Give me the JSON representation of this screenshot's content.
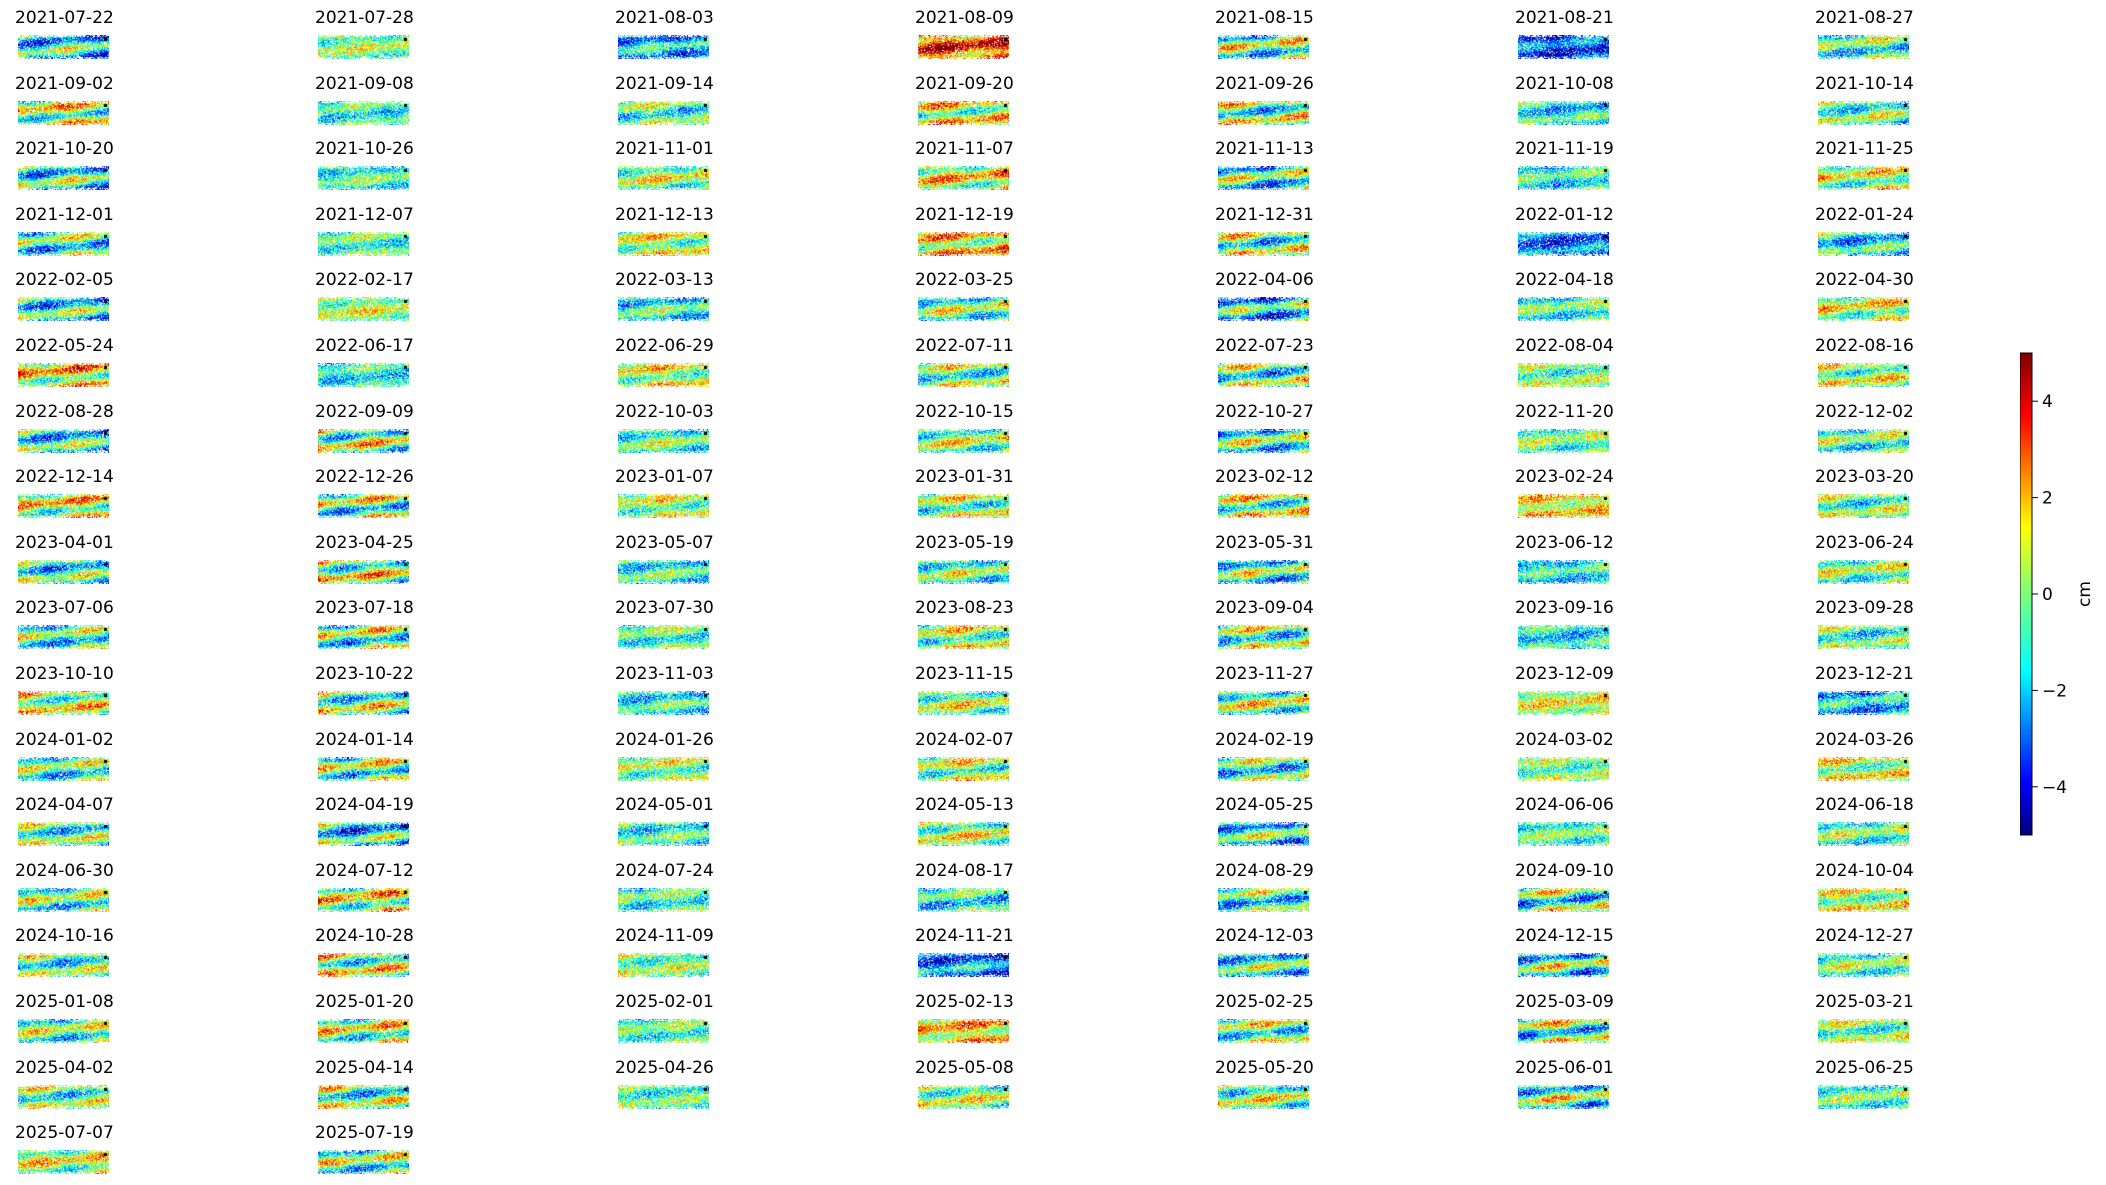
{
  "chart_data": {
    "type": "heatmap",
    "title": "",
    "panel_titles": [
      "2021-07-22",
      "2021-07-28",
      "2021-08-03",
      "2021-08-09",
      "2021-08-15",
      "2021-08-21",
      "2021-08-27",
      "2021-09-02",
      "2021-09-08",
      "2021-09-14",
      "2021-09-20",
      "2021-09-26",
      "2021-10-08",
      "2021-10-14",
      "2021-10-20",
      "2021-10-26",
      "2021-11-01",
      "2021-11-07",
      "2021-11-13",
      "2021-11-19",
      "2021-11-25",
      "2021-12-01",
      "2021-12-07",
      "2021-12-13",
      "2021-12-19",
      "2021-12-31",
      "2022-01-12",
      "2022-01-24",
      "2022-02-05",
      "2022-02-17",
      "2022-03-13",
      "2022-03-25",
      "2022-04-06",
      "2022-04-18",
      "2022-04-30",
      "2022-05-24",
      "2022-06-17",
      "2022-06-29",
      "2022-07-11",
      "2022-07-23",
      "2022-08-04",
      "2022-08-16",
      "2022-08-28",
      "2022-09-09",
      "2022-10-03",
      "2022-10-15",
      "2022-10-27",
      "2022-11-20",
      "2022-12-02",
      "2022-12-14",
      "2022-12-26",
      "2023-01-07",
      "2023-01-31",
      "2023-02-12",
      "2023-02-24",
      "2023-03-20",
      "2023-04-01",
      "2023-04-25",
      "2023-05-07",
      "2023-05-19",
      "2023-05-31",
      "2023-06-12",
      "2023-06-24",
      "2023-07-06",
      "2023-07-18",
      "2023-07-30",
      "2023-08-23",
      "2023-09-04",
      "2023-09-16",
      "2023-09-28",
      "2023-10-10",
      "2023-10-22",
      "2023-11-03",
      "2023-11-15",
      "2023-11-27",
      "2023-12-09",
      "2023-12-21",
      "2024-01-02",
      "2024-01-14",
      "2024-01-26",
      "2024-02-07",
      "2024-02-19",
      "2024-03-02",
      "2024-03-26",
      "2024-04-07",
      "2024-04-19",
      "2024-05-01",
      "2024-05-13",
      "2024-05-25",
      "2024-06-06",
      "2024-06-18",
      "2024-06-30",
      "2024-07-12",
      "2024-07-24",
      "2024-08-17",
      "2024-08-29",
      "2024-09-10",
      "2024-10-04",
      "2024-10-16",
      "2024-10-28",
      "2024-11-09",
      "2024-11-21",
      "2024-12-03",
      "2024-12-15",
      "2024-12-27",
      "2025-01-08",
      "2025-01-20",
      "2025-02-01",
      "2025-02-13",
      "2025-02-25",
      "2025-03-09",
      "2025-03-21",
      "2025-04-02",
      "2025-04-14",
      "2025-04-26",
      "2025-05-08",
      "2025-05-20",
      "2025-06-01",
      "2025-06-25",
      "2025-07-07",
      "2025-07-19"
    ],
    "panel_mean_cm": [
      -1.2,
      0.2,
      -1.8,
      3.2,
      -0.3,
      -3.0,
      -0.6,
      0.5,
      -0.8,
      -0.5,
      0.8,
      -0.2,
      -1.2,
      -0.4,
      -0.8,
      -0.6,
      0.3,
      1.0,
      -0.9,
      -1.0,
      0.4,
      -0.7,
      -0.5,
      0.6,
      1.4,
      -0.3,
      -2.8,
      -1.3,
      -1.0,
      0.4,
      -0.9,
      -0.2,
      -1.5,
      -0.7,
      0.5,
      1.2,
      -1.1,
      0.6,
      -0.3,
      -0.5,
      -0.2,
      0.3,
      -1.0,
      0.1,
      -0.4,
      0.2,
      -0.6,
      -0.2,
      -0.4,
      0.8,
      -0.2,
      0.3,
      0.1,
      0.2,
      1.2,
      -0.3,
      -0.9,
      0.4,
      -0.8,
      -0.3,
      -0.6,
      -1.2,
      -0.1,
      -0.7,
      -0.3,
      -0.5,
      0.3,
      -0.4,
      -1.3,
      -0.6,
      0.4,
      -0.1,
      -1.0,
      0.3,
      0.2,
      0.8,
      -1.8,
      -0.5,
      -0.2,
      0.1,
      0.3,
      -0.7,
      -0.1,
      0.5,
      -0.6,
      -1.4,
      -0.8,
      0.4,
      -0.9,
      -0.5,
      -0.4,
      -0.4,
      0.6,
      -0.6,
      -1.0,
      -0.8,
      -0.6,
      0.5,
      -0.5,
      0.2,
      0.0,
      -2.4,
      -0.8,
      -0.6,
      -0.3,
      -0.3,
      0.3,
      -0.5,
      1.6,
      -0.2,
      -0.4,
      -0.1,
      -0.3,
      -0.4,
      -0.5,
      0.2,
      0.1,
      -0.3,
      -0.4,
      0.6,
      -0.3
    ],
    "colorbar": {
      "label": "cm",
      "range": [
        -5,
        5
      ],
      "ticks": [
        -4,
        -2,
        0,
        2,
        4
      ],
      "tick_labels": [
        "−4",
        "−2",
        "0",
        "2",
        "4"
      ],
      "colormap": "jet"
    },
    "layout": {
      "columns": 7,
      "axes": "off"
    }
  }
}
